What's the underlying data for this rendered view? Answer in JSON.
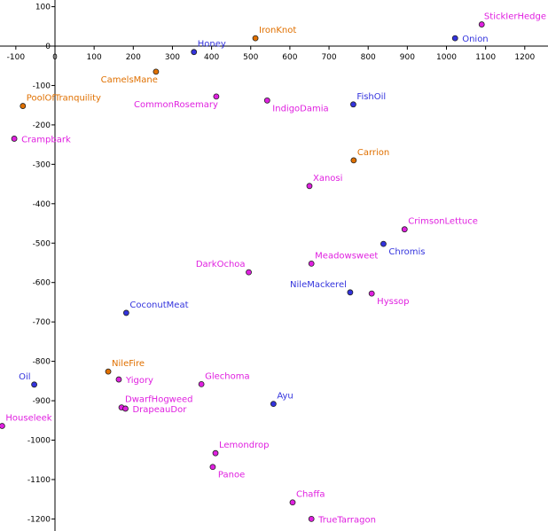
{
  "chart_data": {
    "type": "scatter",
    "title": "",
    "xlabel": "",
    "ylabel": "",
    "xlim": [
      -130,
      1250
    ],
    "ylim": [
      -1240,
      120
    ],
    "grid": false,
    "x_ticks": [
      -100,
      0,
      100,
      200,
      300,
      400,
      500,
      600,
      700,
      800,
      900,
      1000,
      1100,
      1200
    ],
    "y_ticks": [
      100,
      0,
      -100,
      -200,
      -300,
      -400,
      -500,
      -600,
      -700,
      -800,
      -900,
      -1000,
      -1100,
      -1200
    ],
    "colors": {
      "magenta": "#e020e0",
      "blue": "#3333dd",
      "orange": "#e07000"
    },
    "points": [
      {
        "name": "StickIerHedge",
        "x": 1090,
        "y": 55,
        "color": "magenta",
        "label_pos": "right-above"
      },
      {
        "name": "Onion",
        "x": 1022,
        "y": 20,
        "color": "blue",
        "label_pos": "right"
      },
      {
        "name": "IronKnot",
        "x": 512,
        "y": 20,
        "color": "orange",
        "label_pos": "right-above"
      },
      {
        "name": "Honey",
        "x": 355,
        "y": -15,
        "color": "blue",
        "label_pos": "right-above"
      },
      {
        "name": "CamelsMane",
        "x": 258,
        "y": -65,
        "color": "orange",
        "label_pos": "left-below"
      },
      {
        "name": "CommonRosemary",
        "x": 412,
        "y": -128,
        "color": "magenta",
        "label_pos": "left-below"
      },
      {
        "name": "IndigoDamia",
        "x": 542,
        "y": -138,
        "color": "magenta",
        "label_pos": "right-below"
      },
      {
        "name": "FishOil",
        "x": 762,
        "y": -148,
        "color": "blue",
        "label_pos": "right-above"
      },
      {
        "name": "PoolOfTranquility",
        "x": -82,
        "y": -152,
        "color": "orange",
        "label_pos": "right-above"
      },
      {
        "name": "Crampbark",
        "x": -104,
        "y": -235,
        "color": "magenta",
        "label_pos": "right"
      },
      {
        "name": "Carrion",
        "x": 763,
        "y": -290,
        "color": "orange",
        "label_pos": "right-above"
      },
      {
        "name": "Xanosi",
        "x": 650,
        "y": -355,
        "color": "magenta",
        "label_pos": "right-above"
      },
      {
        "name": "CrimsonLettuce",
        "x": 893,
        "y": -465,
        "color": "magenta",
        "label_pos": "right-above"
      },
      {
        "name": "Chromis",
        "x": 839,
        "y": -502,
        "color": "blue",
        "label_pos": "right-below"
      },
      {
        "name": "Meadowsweet",
        "x": 655,
        "y": -552,
        "color": "magenta",
        "label_pos": "right-above"
      },
      {
        "name": "DarkOchoa",
        "x": 495,
        "y": -574,
        "color": "magenta",
        "label_pos": "left-above"
      },
      {
        "name": "NileMackerel",
        "x": 754,
        "y": -625,
        "color": "blue",
        "label_pos": "left-above"
      },
      {
        "name": "Hyssop",
        "x": 809,
        "y": -628,
        "color": "magenta",
        "label_pos": "right-below"
      },
      {
        "name": "CoconutMeat",
        "x": 182,
        "y": -677,
        "color": "blue",
        "label_pos": "right-above"
      },
      {
        "name": "NileFire",
        "x": 136,
        "y": -826,
        "color": "orange",
        "label_pos": "right-above"
      },
      {
        "name": "Yigory",
        "x": 163,
        "y": -846,
        "color": "magenta",
        "label_pos": "right"
      },
      {
        "name": "Glechoma",
        "x": 374,
        "y": -858,
        "color": "magenta",
        "label_pos": "right-above"
      },
      {
        "name": "Oil",
        "x": -53,
        "y": -859,
        "color": "blue",
        "label_pos": "left-above"
      },
      {
        "name": "Ayu",
        "x": 558,
        "y": -908,
        "color": "blue",
        "label_pos": "right-above"
      },
      {
        "name": "DwarfHogweed",
        "x": 170,
        "y": -917,
        "color": "magenta",
        "label_pos": "right-above"
      },
      {
        "name": "DrapeauDor",
        "x": 180,
        "y": -920,
        "color": "magenta",
        "label_pos": "right"
      },
      {
        "name": "Houseleek",
        "x": -135,
        "y": -964,
        "color": "magenta",
        "label_pos": "right-above"
      },
      {
        "name": "Lemondrop",
        "x": 410,
        "y": -1033,
        "color": "magenta",
        "label_pos": "right-above"
      },
      {
        "name": "Panoe",
        "x": 403,
        "y": -1068,
        "color": "magenta",
        "label_pos": "right-below"
      },
      {
        "name": "Chaffa",
        "x": 607,
        "y": -1158,
        "color": "magenta",
        "label_pos": "right-above"
      },
      {
        "name": "TrueTarragon",
        "x": 655,
        "y": -1200,
        "color": "magenta",
        "label_pos": "right"
      }
    ]
  }
}
